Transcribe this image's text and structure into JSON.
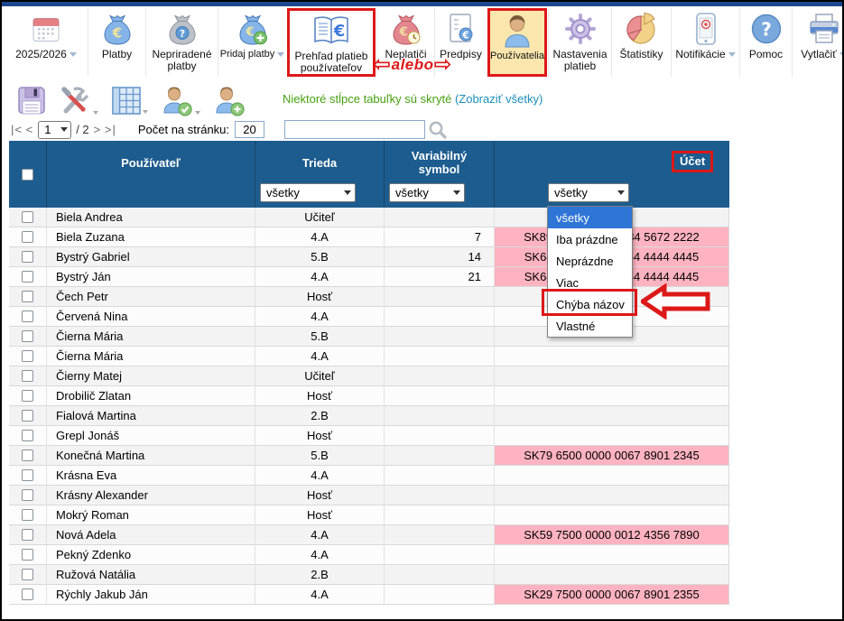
{
  "window": {
    "school_year": "2025/2026"
  },
  "toolbar": {
    "annotation_text": "alebo",
    "items": [
      {
        "label": "2025/2026",
        "icon": "calendar-icon",
        "dropdown": true
      },
      {
        "label": "Platby",
        "icon": "money-bag-icon",
        "dropdown": false
      },
      {
        "label": "Nepriradené platby",
        "icon": "money-bag-question-icon",
        "dropdown": false
      },
      {
        "label": "Pridaj platby",
        "icon": "money-bag-plus-icon",
        "dropdown": true
      },
      {
        "label": "Prehľad platieb používateľov",
        "icon": "book-euro-icon",
        "dropdown": false,
        "annotated_box": true
      },
      {
        "label": "Neplatiči",
        "icon": "money-bag-clock-icon",
        "dropdown": false
      },
      {
        "label": "Predpisy",
        "icon": "document-euro-icon",
        "dropdown": false
      },
      {
        "label": "Používatelia",
        "icon": "user-icon",
        "dropdown": false,
        "annotated_box": true,
        "selected": true
      },
      {
        "label": "Nastavenia platieb",
        "icon": "gear-icon",
        "dropdown": false
      },
      {
        "label": "Štatistiky",
        "icon": "pie-chart-icon",
        "dropdown": false
      },
      {
        "label": "Notifikácie",
        "icon": "phone-icon",
        "dropdown": true
      },
      {
        "label": "Pomoc",
        "icon": "question-icon",
        "dropdown": false
      },
      {
        "label": "Vytlačiť",
        "icon": "printer-icon",
        "dropdown": true
      }
    ]
  },
  "actionbar": {
    "notice_text": "Niektoré stĺpce tabuľky sú skryté",
    "show_all_link": "(Zobraziť všetky)"
  },
  "pager": {
    "first": "|<",
    "prev": "<",
    "page_value": "1",
    "total_label": "/ 2",
    "next": ">",
    "last": ">|",
    "per_page_label": "Počet na stránku:",
    "per_page_value": "20",
    "search_value": ""
  },
  "table": {
    "columns": {
      "user": "Používateľ",
      "class": "Trieda",
      "variable_symbol": "Variabilný symbol",
      "account": "Účet"
    },
    "filters": {
      "class": "všetky",
      "variable_symbol": "všetky",
      "account": "všetky"
    },
    "rows": [
      {
        "name": "Biela Andrea",
        "trieda": "Učiteľ",
        "vs": "",
        "ucet": "",
        "pink": false
      },
      {
        "name": "Biela Zuzana",
        "trieda": "4.A",
        "vs": "7",
        "ucet": "SK89 7500 0000 0084 5672 2222",
        "pink": true
      },
      {
        "name": "Bystrý Gabriel",
        "trieda": "5.B",
        "vs": "14",
        "ucet": "SK64 1100 0000 0054 4444 4445",
        "pink": true
      },
      {
        "name": "Bystrý Ján",
        "trieda": "4.A",
        "vs": "21",
        "ucet": "SK64 1100 0000 0054 4444 4445",
        "pink": true
      },
      {
        "name": "Čech Petr",
        "trieda": "Hosť",
        "vs": "",
        "ucet": "",
        "pink": false
      },
      {
        "name": "Červená Nina",
        "trieda": "4.A",
        "vs": "",
        "ucet": "",
        "pink": false
      },
      {
        "name": "Čierna Mária",
        "trieda": "5.B",
        "vs": "",
        "ucet": "",
        "pink": false
      },
      {
        "name": "Čierna Mária",
        "trieda": "4.A",
        "vs": "",
        "ucet": "",
        "pink": false
      },
      {
        "name": "Čierny Matej",
        "trieda": "Učiteľ",
        "vs": "",
        "ucet": "",
        "pink": false
      },
      {
        "name": "Drobilič Zlatan",
        "trieda": "Hosť",
        "vs": "",
        "ucet": "",
        "pink": false
      },
      {
        "name": "Fialová Martina",
        "trieda": "2.B",
        "vs": "",
        "ucet": "",
        "pink": false
      },
      {
        "name": "Grepl Jonáš",
        "trieda": "Hosť",
        "vs": "",
        "ucet": "",
        "pink": false
      },
      {
        "name": "Konečná Martina",
        "trieda": "5.B",
        "vs": "",
        "ucet": "SK79 6500 0000 0067 8901 2345",
        "pink": true
      },
      {
        "name": "Krásna Eva",
        "trieda": "4.A",
        "vs": "",
        "ucet": "",
        "pink": false
      },
      {
        "name": "Krásny Alexander",
        "trieda": "Hosť",
        "vs": "",
        "ucet": "",
        "pink": false
      },
      {
        "name": "Mokrý Roman",
        "trieda": "Hosť",
        "vs": "",
        "ucet": "",
        "pink": false
      },
      {
        "name": "Nová Adela",
        "trieda": "4.A",
        "vs": "",
        "ucet": "SK59 7500 0000 0012 4356 7890",
        "pink": true
      },
      {
        "name": "Pekný Zdenko",
        "trieda": "4.A",
        "vs": "",
        "ucet": "",
        "pink": false
      },
      {
        "name": "Ružová Natália",
        "trieda": "2.B",
        "vs": "",
        "ucet": "",
        "pink": false
      },
      {
        "name": "Rýchly Jakub Ján",
        "trieda": "4.A",
        "vs": "",
        "ucet": "SK29 7500 0000 0067 8901 2355",
        "pink": true
      }
    ]
  },
  "account_dropdown": {
    "options": [
      "všetky",
      "Iba prázdne",
      "Neprázdne",
      "Viac",
      "Chýba názov",
      "Vlastné"
    ],
    "selected": "všetky",
    "annotated_option": "Chýba názov"
  },
  "colors": {
    "header_blue": "#1d5c8e",
    "pink_cell": "#ffb3c0",
    "annotation_red": "#dd1818",
    "notice_green": "#46a010",
    "link_teal": "#1b8fb8",
    "option_highlight_blue": "#2e75d6",
    "selected_item_yellow": "#fbe7ae",
    "top_strip_navy": "#1c4790"
  }
}
